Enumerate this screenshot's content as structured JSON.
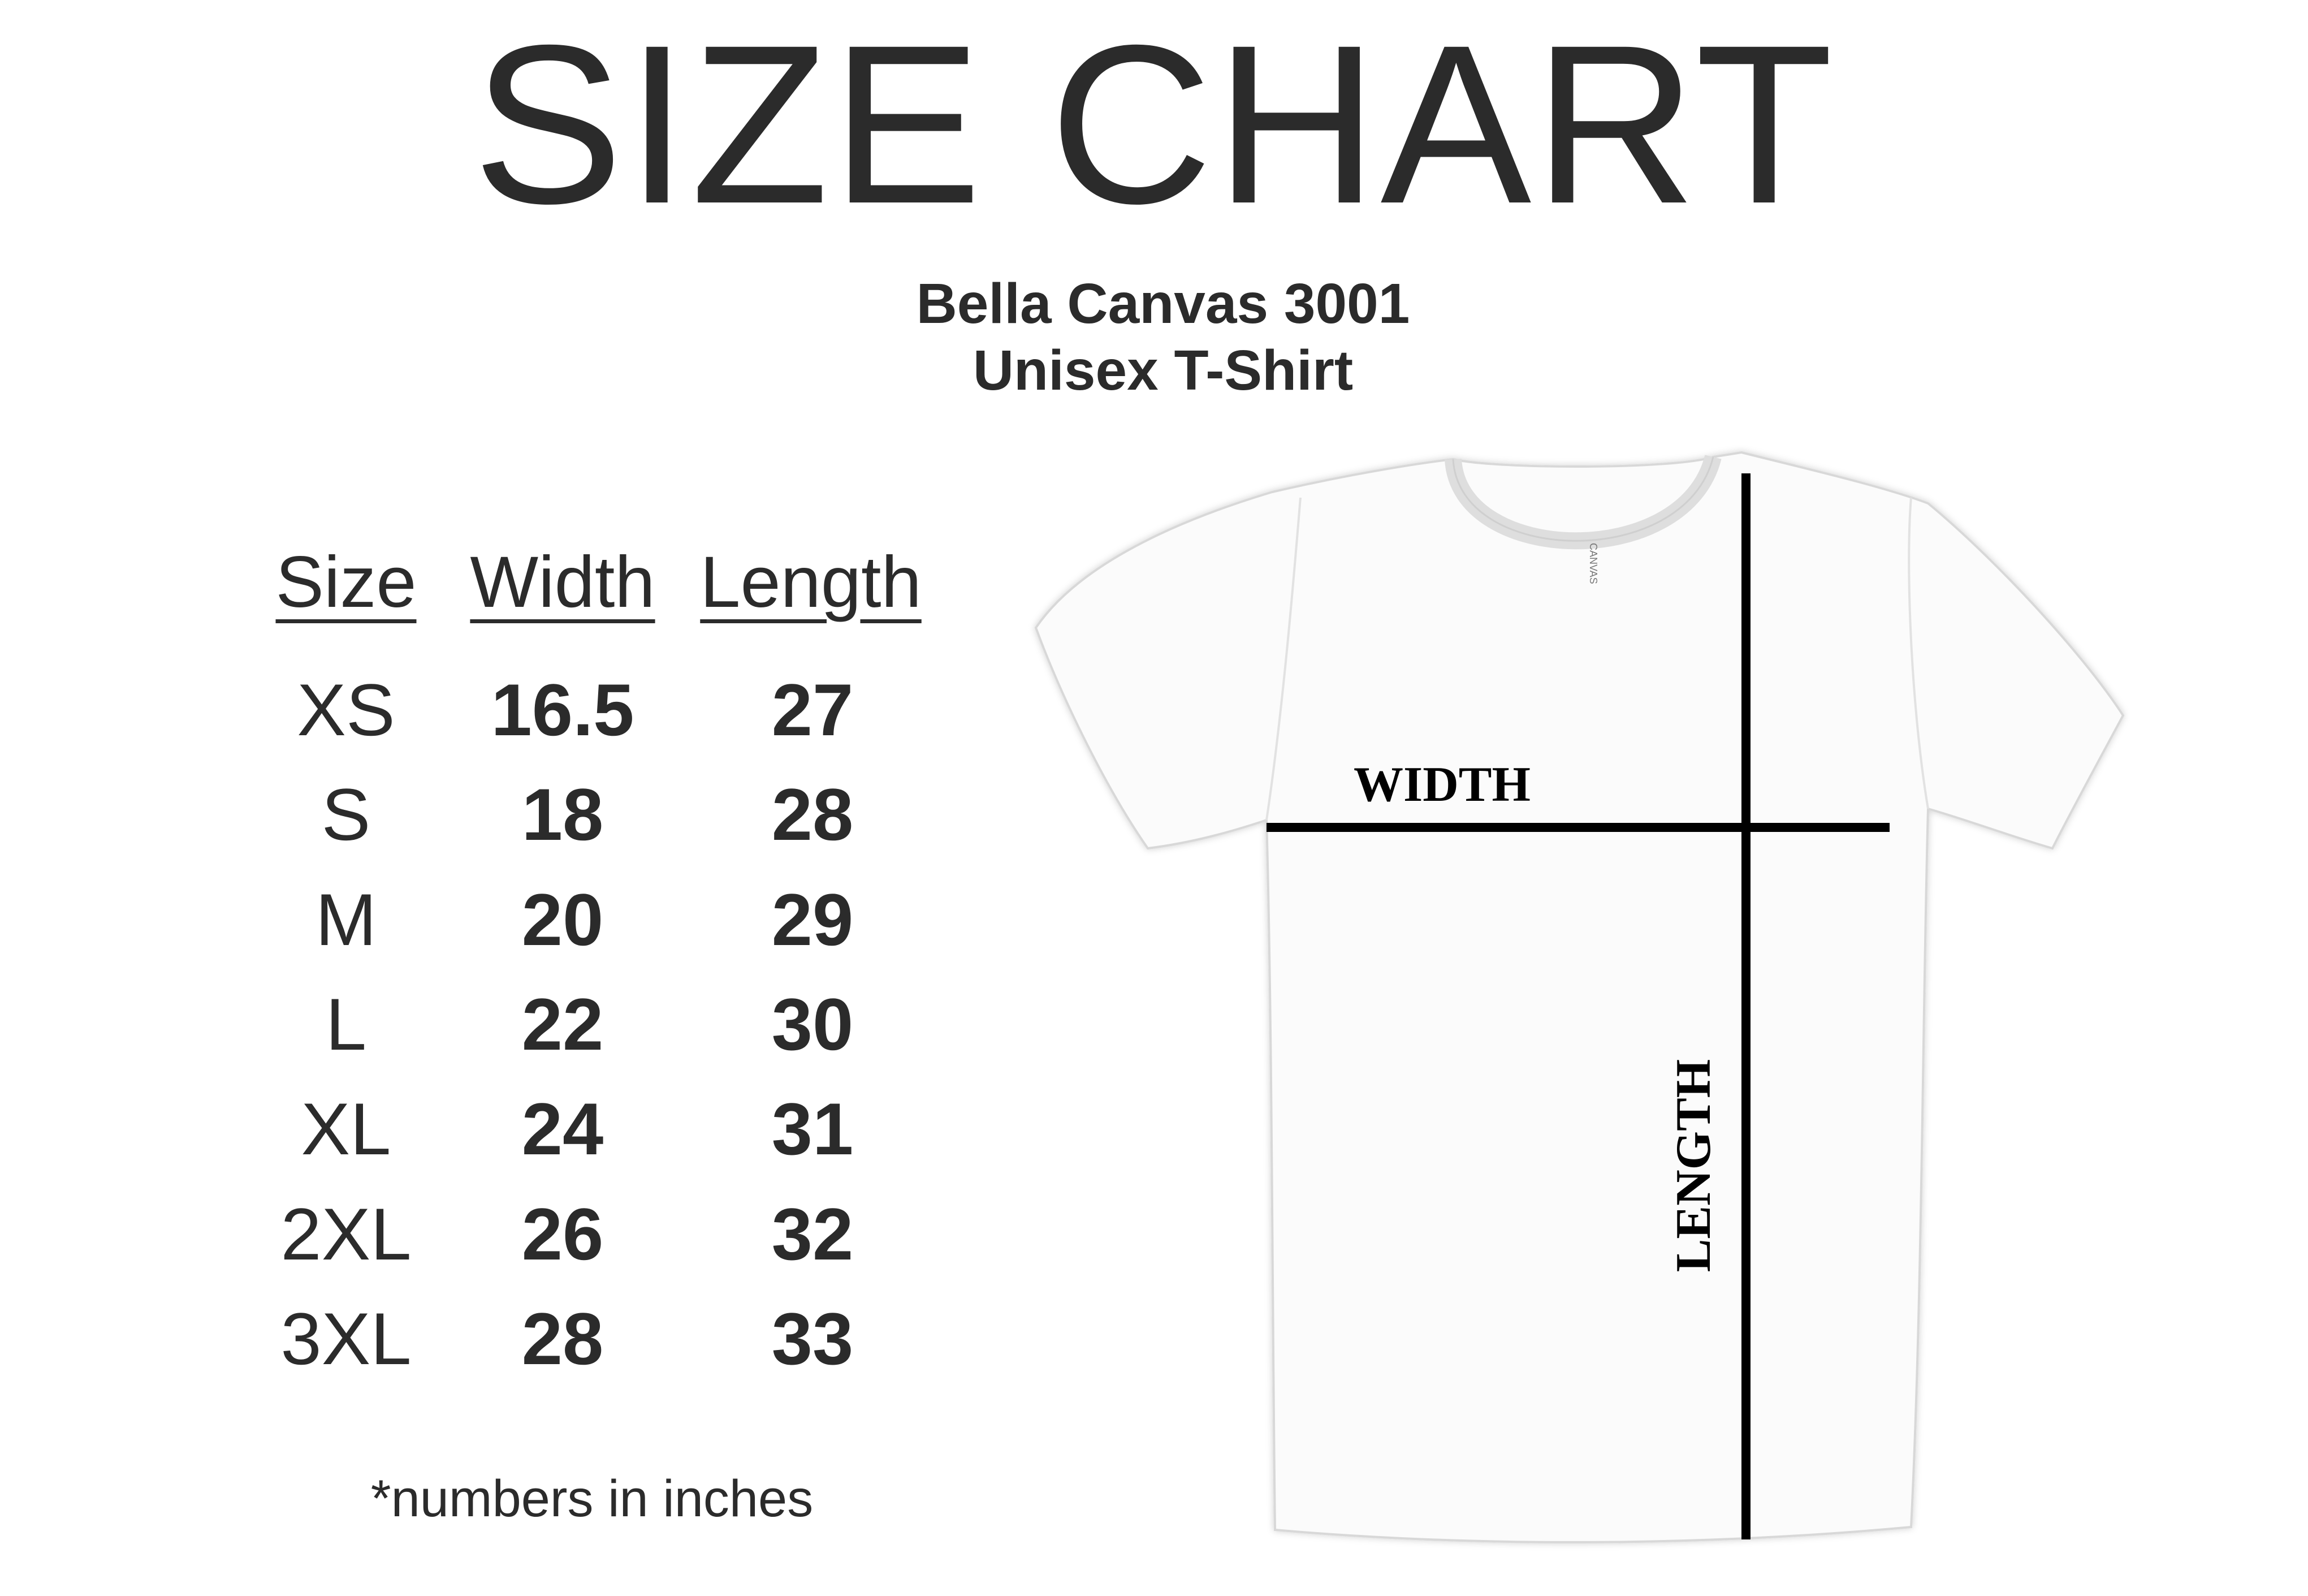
{
  "title": "SIZE CHART",
  "product": {
    "name": "Bella Canvas 3001",
    "type": "Unisex T-Shirt"
  },
  "table": {
    "headers": [
      "Size",
      "Width",
      "Length"
    ],
    "rows": [
      [
        "XS",
        "16.5",
        "27"
      ],
      [
        "S",
        "18",
        "28"
      ],
      [
        "M",
        "20",
        "29"
      ],
      [
        "L",
        "22",
        "30"
      ],
      [
        "XL",
        "24",
        "31"
      ],
      [
        "2XL",
        "26",
        "32"
      ],
      [
        "3XL",
        "28",
        "33"
      ]
    ]
  },
  "footnote": "*numbers in inches",
  "diagram": {
    "width_label": "WIDTH",
    "length_label": "LENGTH",
    "tag_text": "CANVAS"
  },
  "colors": {
    "text": "#2b2b2b",
    "measure_lines": "#000000",
    "shirt": "#ffffff"
  }
}
